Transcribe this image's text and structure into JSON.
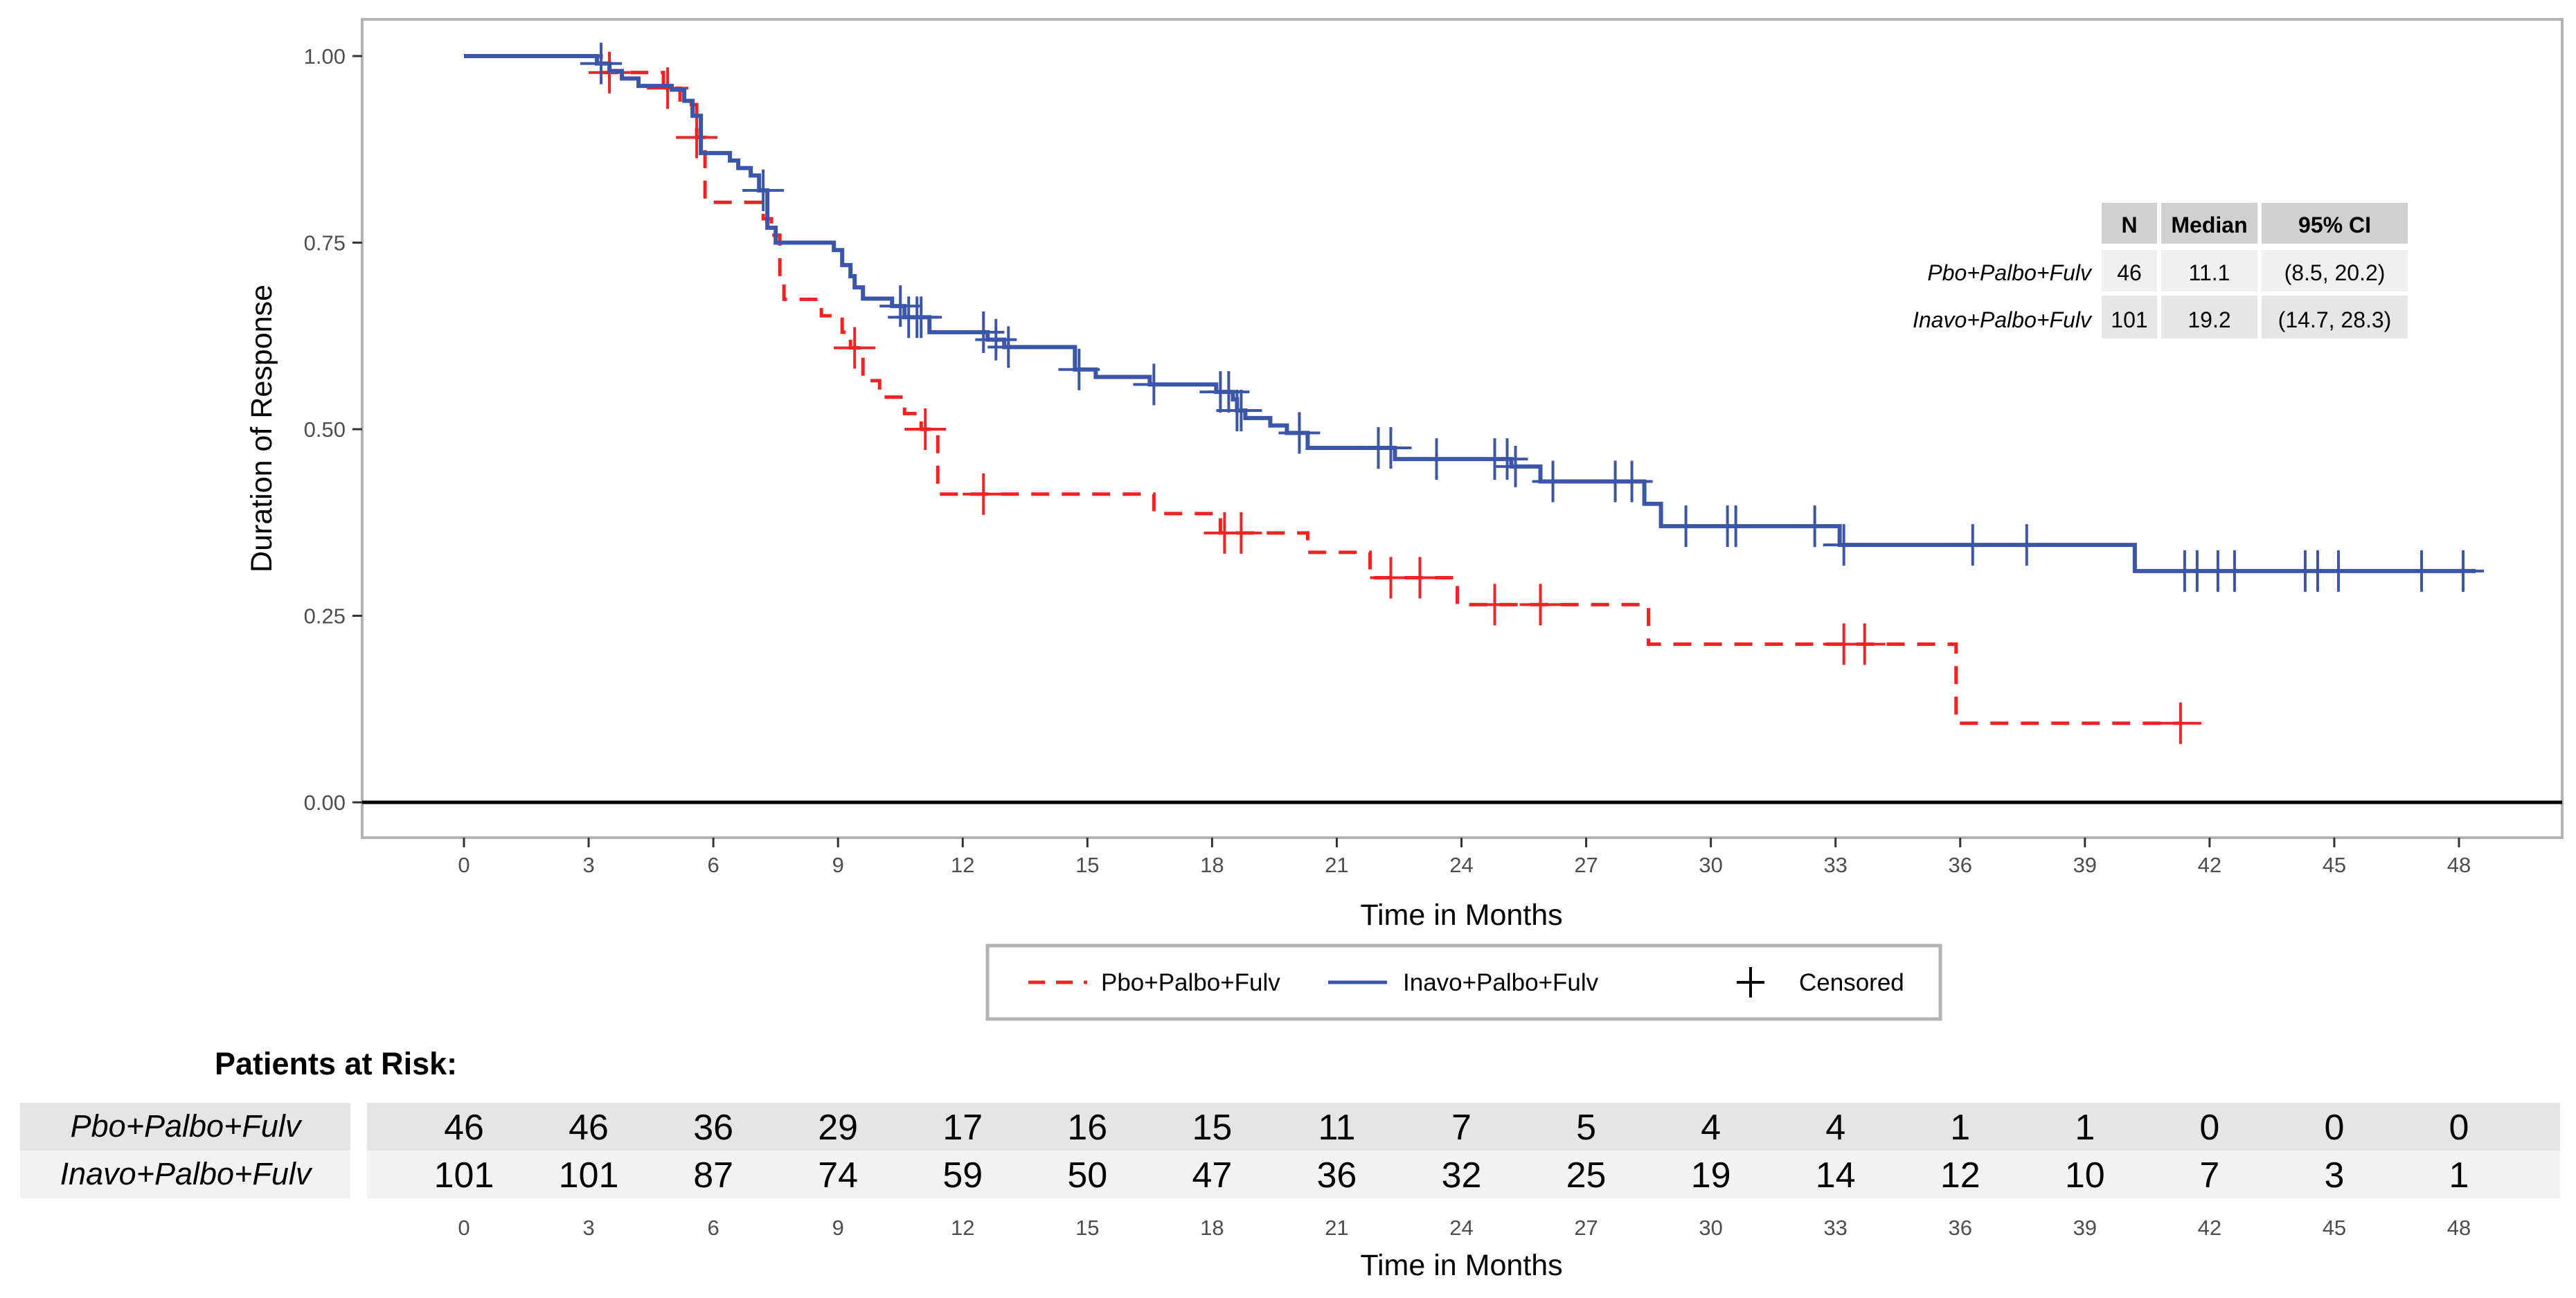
{
  "chart_data": {
    "type": "line",
    "subtype": "kaplan-meier",
    "xlabel": "Time in Months",
    "ylabel": "Duration of Response",
    "xlim": [
      -2.4,
      50.4
    ],
    "ylim": [
      -0.05,
      1.05
    ],
    "x_ticks": [
      0,
      3,
      6,
      9,
      12,
      15,
      18,
      21,
      24,
      27,
      30,
      33,
      36,
      39,
      42,
      45,
      48
    ],
    "y_ticks": [
      "0.00",
      "0.25",
      "0.50",
      "0.75",
      "1.00"
    ],
    "y_tick_values": [
      0,
      0.25,
      0.5,
      0.75,
      1.0
    ],
    "grid": false,
    "colors": {
      "pbo": "#ee2424",
      "inavo": "#3b55a8"
    },
    "series": [
      {
        "name": "Pbo+Palbo+Fulv",
        "line_style": "dashed",
        "steps": [
          [
            0,
            1.0
          ],
          [
            3.3,
            0.978
          ],
          [
            4.8,
            0.957
          ],
          [
            5.2,
            0.935
          ],
          [
            5.6,
            0.891
          ],
          [
            5.8,
            0.804
          ],
          [
            7.2,
            0.782
          ],
          [
            7.4,
            0.76
          ],
          [
            7.6,
            0.695
          ],
          [
            7.7,
            0.674
          ],
          [
            8.6,
            0.652
          ],
          [
            9.1,
            0.63
          ],
          [
            9.3,
            0.609
          ],
          [
            9.6,
            0.565
          ],
          [
            10.0,
            0.543
          ],
          [
            10.6,
            0.521
          ],
          [
            11.0,
            0.5
          ],
          [
            11.4,
            0.413
          ],
          [
            16.6,
            0.387
          ],
          [
            18.2,
            0.361
          ],
          [
            20.3,
            0.335
          ],
          [
            21.8,
            0.301
          ],
          [
            23.9,
            0.265
          ],
          [
            28.5,
            0.212
          ],
          [
            35.9,
            0.106
          ]
        ],
        "end": 41.3,
        "censored": [
          3.5,
          4.9,
          5.6,
          9.4,
          11.1,
          12.5,
          18.3,
          18.7,
          22.3,
          23.0,
          24.8,
          25.9,
          33.2,
          33.7,
          41.3
        ]
      },
      {
        "name": "Inavo+Palbo+Fulv",
        "line_style": "solid",
        "steps": [
          [
            0,
            1.0
          ],
          [
            3.2,
            0.99
          ],
          [
            3.5,
            0.98
          ],
          [
            3.8,
            0.97
          ],
          [
            4.2,
            0.96
          ],
          [
            5.0,
            0.955
          ],
          [
            5.3,
            0.94
          ],
          [
            5.5,
            0.92
          ],
          [
            5.7,
            0.87
          ],
          [
            6.4,
            0.86
          ],
          [
            6.6,
            0.85
          ],
          [
            6.9,
            0.84
          ],
          [
            7.1,
            0.82
          ],
          [
            7.3,
            0.77
          ],
          [
            7.5,
            0.75
          ],
          [
            8.9,
            0.74
          ],
          [
            9.1,
            0.72
          ],
          [
            9.3,
            0.705
          ],
          [
            9.4,
            0.69
          ],
          [
            9.6,
            0.675
          ],
          [
            10.3,
            0.665
          ],
          [
            10.6,
            0.65
          ],
          [
            11.2,
            0.63
          ],
          [
            12.6,
            0.62
          ],
          [
            13.0,
            0.61
          ],
          [
            14.7,
            0.58
          ],
          [
            15.2,
            0.57
          ],
          [
            16.5,
            0.56
          ],
          [
            18.1,
            0.55
          ],
          [
            18.5,
            0.54
          ],
          [
            18.6,
            0.525
          ],
          [
            18.8,
            0.515
          ],
          [
            19.4,
            0.505
          ],
          [
            19.8,
            0.495
          ],
          [
            20.3,
            0.475
          ],
          [
            22.4,
            0.46
          ],
          [
            25.2,
            0.45
          ],
          [
            25.9,
            0.43
          ],
          [
            28.4,
            0.4
          ],
          [
            28.8,
            0.37
          ],
          [
            33.1,
            0.345
          ],
          [
            40.2,
            0.31
          ]
        ],
        "end": 48.4,
        "censored": [
          3.3,
          7.2,
          10.5,
          10.7,
          10.9,
          11.0,
          12.5,
          12.8,
          13.1,
          14.8,
          16.6,
          18.2,
          18.4,
          18.6,
          18.7,
          20.1,
          22.0,
          22.3,
          23.4,
          24.8,
          25.1,
          25.3,
          26.2,
          27.7,
          28.1,
          29.4,
          30.4,
          30.6,
          32.5,
          33.2,
          36.3,
          37.6,
          41.4,
          41.7,
          42.2,
          42.6,
          44.3,
          44.6,
          45.1,
          47.1,
          48.1
        ]
      }
    ],
    "summary_table": {
      "headers": [
        "N",
        "Median",
        "95% CI"
      ],
      "rows": [
        {
          "label": "Pbo+Palbo+Fulv",
          "cells": [
            "46",
            "11.1",
            "(8.5, 20.2)"
          ]
        },
        {
          "label": "Inavo+Palbo+Fulv",
          "cells": [
            "101",
            "19.2",
            "(14.7, 28.3)"
          ]
        }
      ]
    },
    "legend": {
      "placement": "bottom",
      "items": [
        {
          "label": "Pbo+Palbo+Fulv",
          "style": "dashed-red"
        },
        {
          "label": "Inavo+Palbo+Fulv",
          "style": "solid-blue"
        },
        {
          "label": "Censored",
          "style": "plus"
        }
      ]
    },
    "risk_table": {
      "title": "Patients at Risk:",
      "xlabel": "Time in Months",
      "times": [
        0,
        3,
        6,
        9,
        12,
        15,
        18,
        21,
        24,
        27,
        30,
        33,
        36,
        39,
        42,
        45,
        48
      ],
      "rows": [
        {
          "label": "Pbo+Palbo+Fulv",
          "values": [
            46,
            46,
            36,
            29,
            17,
            16,
            15,
            11,
            7,
            5,
            4,
            4,
            1,
            1,
            0,
            0,
            0
          ]
        },
        {
          "label": "Inavo+Palbo+Fulv",
          "values": [
            101,
            101,
            87,
            74,
            59,
            50,
            47,
            36,
            32,
            25,
            19,
            14,
            12,
            10,
            7,
            3,
            1
          ]
        }
      ]
    }
  }
}
